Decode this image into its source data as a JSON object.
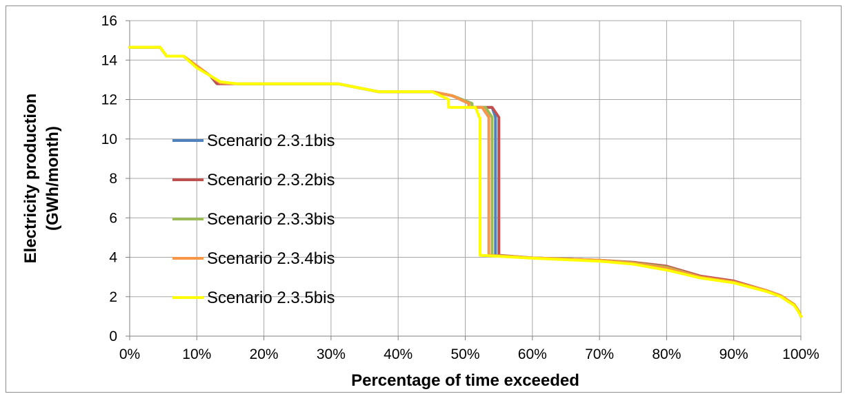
{
  "chart_data": {
    "type": "line",
    "title": "",
    "xlabel": "Percentage of time exceeded",
    "ylabel_lines": [
      "Electricity production",
      "(GWh/month)"
    ],
    "xlim": [
      0,
      100
    ],
    "ylim": [
      0,
      16
    ],
    "x_ticks": [
      0,
      10,
      20,
      30,
      40,
      50,
      60,
      70,
      80,
      90,
      100
    ],
    "x_tick_labels": [
      "0%",
      "10%",
      "20%",
      "30%",
      "40%",
      "50%",
      "60%",
      "70%",
      "80%",
      "90%",
      "100%"
    ],
    "y_ticks": [
      0,
      2,
      4,
      6,
      8,
      10,
      12,
      14,
      16
    ],
    "y_tick_labels": [
      "0",
      "2",
      "4",
      "6",
      "8",
      "10",
      "12",
      "14",
      "16"
    ],
    "grid": true,
    "legend_position": "left-center",
    "series": [
      {
        "name": "Scenario 2.3.1bis",
        "color": "#4f81bd",
        "x": [
          0,
          4.5,
          5.5,
          8,
          10,
          12,
          13.5,
          16,
          31,
          37,
          45,
          48,
          51,
          51,
          53,
          54,
          54.5,
          54.5,
          60,
          70,
          75,
          80,
          85,
          90,
          95,
          97,
          99,
          99.6,
          100
        ],
        "y": [
          14.65,
          14.65,
          14.2,
          14.2,
          13.7,
          13.2,
          12.85,
          12.8,
          12.8,
          12.4,
          12.4,
          12.2,
          11.8,
          11.6,
          11.6,
          11.6,
          11.1,
          4.1,
          3.97,
          3.85,
          3.72,
          3.5,
          3.0,
          2.75,
          2.3,
          2.05,
          1.6,
          1.3,
          1.0
        ]
      },
      {
        "name": "Scenario 2.3.2bis",
        "color": "#c0504d",
        "x": [
          0,
          4.5,
          5.5,
          8,
          10,
          12,
          13,
          16,
          31,
          37,
          45,
          48,
          51,
          51,
          54,
          55,
          55,
          60,
          70,
          75,
          80,
          85,
          90,
          95,
          97,
          99,
          99.6,
          100
        ],
        "y": [
          14.65,
          14.65,
          14.2,
          14.2,
          13.7,
          13.2,
          12.8,
          12.8,
          12.8,
          12.4,
          12.4,
          12.2,
          11.8,
          11.6,
          11.6,
          11.1,
          4.1,
          3.97,
          3.85,
          3.75,
          3.55,
          3.05,
          2.8,
          2.3,
          2.05,
          1.6,
          1.3,
          1.0
        ]
      },
      {
        "name": "Scenario 2.3.3bis",
        "color": "#9bbb59",
        "x": [
          0,
          4.5,
          5.5,
          8,
          10,
          12,
          13.5,
          16,
          31,
          37,
          45,
          48,
          51,
          51,
          53,
          54,
          54,
          60,
          70,
          75,
          80,
          85,
          90,
          95,
          97,
          99,
          99.6,
          100
        ],
        "y": [
          14.65,
          14.65,
          14.2,
          14.2,
          13.7,
          13.2,
          12.85,
          12.8,
          12.8,
          12.4,
          12.4,
          12.2,
          11.8,
          11.6,
          11.6,
          11.1,
          4.1,
          3.97,
          3.85,
          3.72,
          3.5,
          3.0,
          2.75,
          2.3,
          2.05,
          1.6,
          1.3,
          1.0
        ]
      },
      {
        "name": "Scenario 2.3.4bis",
        "color": "#f79646",
        "x": [
          0,
          4.5,
          5.5,
          8,
          10,
          12,
          13.5,
          16,
          31,
          37,
          45,
          48,
          50.5,
          50.5,
          52.5,
          53.5,
          53.5,
          60,
          70,
          75,
          80,
          85,
          90,
          95,
          97,
          99,
          99.6,
          100
        ],
        "y": [
          14.65,
          14.65,
          14.2,
          14.2,
          13.7,
          13.2,
          12.85,
          12.8,
          12.8,
          12.4,
          12.4,
          12.2,
          11.8,
          11.6,
          11.6,
          11.1,
          4.1,
          3.97,
          3.85,
          3.7,
          3.45,
          3.0,
          2.75,
          2.3,
          2.05,
          1.6,
          1.3,
          1.0
        ]
      },
      {
        "name": "Scenario 2.3.5bis",
        "color": "#ffff00",
        "x": [
          0,
          4.5,
          5.5,
          8,
          10,
          12,
          13.5,
          16,
          31,
          37,
          45,
          47.5,
          47.5,
          48.5,
          48.5,
          51.5,
          52.2,
          52.2,
          60,
          70,
          75,
          80,
          85,
          90,
          95,
          97,
          99,
          99.6,
          100
        ],
        "y": [
          14.65,
          14.65,
          14.2,
          14.2,
          13.6,
          13.2,
          12.9,
          12.8,
          12.8,
          12.4,
          12.4,
          12.0,
          11.6,
          11.6,
          11.6,
          11.6,
          11.0,
          4.1,
          3.95,
          3.8,
          3.65,
          3.35,
          2.95,
          2.7,
          2.25,
          2.0,
          1.55,
          1.25,
          1.0
        ]
      }
    ]
  }
}
